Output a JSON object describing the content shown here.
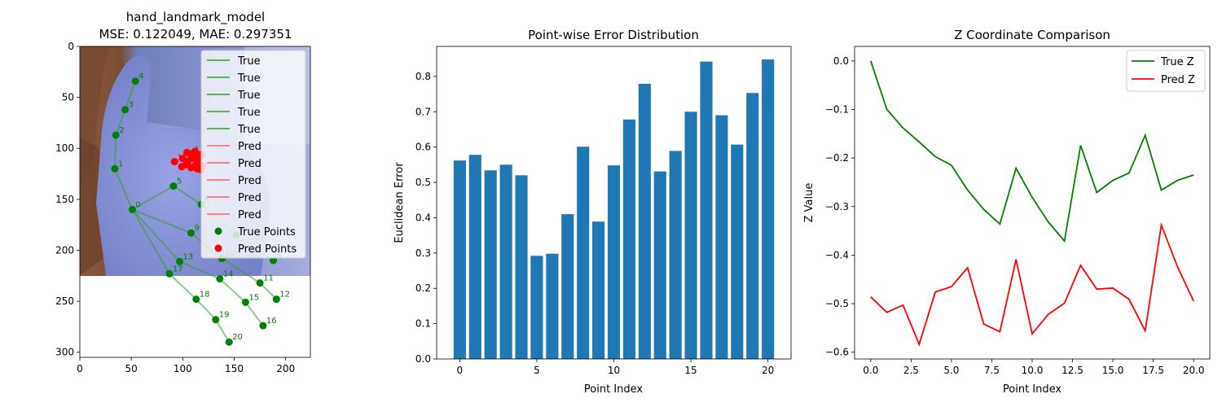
{
  "chart_data": [
    {
      "type": "scatter",
      "title": "hand_landmark_model\nMSE: 0.122049, MAE: 0.297351",
      "xlabel": "",
      "ylabel": "",
      "xlim": [
        0,
        224
      ],
      "ylim": [
        305,
        0
      ],
      "xticks": [
        "0",
        "50",
        "100",
        "150",
        "200"
      ],
      "yticks": [
        "0",
        "50",
        "100",
        "150",
        "200",
        "250",
        "300"
      ],
      "background": "hand photo (bluish glove, brown background) covering y 0–222",
      "legend_position": "upper right",
      "legend": [
        {
          "label": "True",
          "kind": "line",
          "color": "#2ca02c"
        },
        {
          "label": "True",
          "kind": "line",
          "color": "#2ca02c"
        },
        {
          "label": "True",
          "kind": "line",
          "color": "#2ca02c"
        },
        {
          "label": "True",
          "kind": "line",
          "color": "#2ca02c"
        },
        {
          "label": "True",
          "kind": "line",
          "color": "#2ca02c"
        },
        {
          "label": "Pred",
          "kind": "line",
          "color": "#ff6060"
        },
        {
          "label": "Pred",
          "kind": "line",
          "color": "#ff6060"
        },
        {
          "label": "Pred",
          "kind": "line",
          "color": "#ff6060"
        },
        {
          "label": "Pred",
          "kind": "line",
          "color": "#ff6060"
        },
        {
          "label": "Pred",
          "kind": "line",
          "color": "#ff6060"
        },
        {
          "label": "True Points",
          "kind": "dot",
          "color": "#008000"
        },
        {
          "label": "Pred Points",
          "kind": "dot",
          "color": "#ff0000"
        }
      ],
      "true_points": {
        "color": "#008000",
        "x": [
          51,
          34,
          35,
          44,
          54,
          91,
          118,
          152,
          188,
          108,
          138,
          175,
          191,
          97,
          136,
          161,
          178,
          87,
          113,
          132,
          145
        ],
        "y": [
          160,
          120,
          87,
          62,
          34,
          137,
          155,
          185,
          210,
          183,
          208,
          232,
          248,
          211,
          228,
          251,
          274,
          223,
          248,
          268,
          290
        ],
        "labels": [
          "0",
          "1",
          "2",
          "3",
          "4",
          "5",
          "6",
          "7",
          "8",
          "9",
          "10",
          "11",
          "12",
          "13",
          "14",
          "15",
          "16",
          "17",
          "18",
          "19",
          "20"
        ]
      },
      "connections": [
        [
          0,
          1
        ],
        [
          1,
          2
        ],
        [
          2,
          3
        ],
        [
          3,
          4
        ],
        [
          0,
          5
        ],
        [
          5,
          6
        ],
        [
          6,
          7
        ],
        [
          7,
          8
        ],
        [
          0,
          9
        ],
        [
          9,
          10
        ],
        [
          10,
          11
        ],
        [
          11,
          12
        ],
        [
          0,
          13
        ],
        [
          13,
          14
        ],
        [
          14,
          15
        ],
        [
          15,
          16
        ],
        [
          0,
          17
        ],
        [
          17,
          18
        ],
        [
          18,
          19
        ],
        [
          19,
          20
        ]
      ],
      "pred_points": {
        "color": "#ff0000",
        "x": [
          112,
          112,
          111,
          114,
          115,
          104,
          108,
          113,
          118,
          100,
          105,
          112,
          118,
          92,
          99,
          108,
          116,
          109,
          103,
          114,
          120
        ],
        "y": [
          103,
          107,
          110,
          106,
          112,
          104,
          110,
          108,
          106,
          110,
          113,
          117,
          121,
          113,
          118,
          119,
          116,
          105,
          116,
          120,
          117
        ],
        "labels": [
          "",
          "",
          "",
          "",
          "",
          "",
          "",
          "",
          "",
          "",
          "",
          "",
          "",
          "11",
          "",
          "",
          "",
          "17",
          "",
          "",
          ""
        ]
      }
    },
    {
      "type": "bar",
      "title": "Point-wise Error Distribution",
      "xlabel": "Point Index",
      "ylabel": "Euclidean Error",
      "xlim": [
        -1.5,
        21.5
      ],
      "ylim": [
        0,
        0.885
      ],
      "xticks": [
        "0",
        "5",
        "10",
        "15",
        "20"
      ],
      "yticks": [
        "0.0",
        "0.1",
        "0.2",
        "0.3",
        "0.4",
        "0.5",
        "0.6",
        "0.7",
        "0.8"
      ],
      "color": "#1f77b4",
      "categories": [
        0,
        1,
        2,
        3,
        4,
        5,
        6,
        7,
        8,
        9,
        10,
        11,
        12,
        13,
        14,
        15,
        16,
        17,
        18,
        19,
        20
      ],
      "values": [
        0.562,
        0.578,
        0.534,
        0.55,
        0.52,
        0.292,
        0.298,
        0.41,
        0.601,
        0.389,
        0.548,
        0.678,
        0.779,
        0.531,
        0.589,
        0.7,
        0.842,
        0.69,
        0.607,
        0.753,
        0.848
      ]
    },
    {
      "type": "line",
      "title": "Z Coordinate Comparison",
      "xlabel": "Point Index",
      "ylabel": "Z Value",
      "xlim": [
        -1,
        21
      ],
      "ylim": [
        -0.614,
        0.03
      ],
      "xticks": [
        "0.0",
        "2.5",
        "5.0",
        "7.5",
        "10.0",
        "12.5",
        "15.0",
        "17.5",
        "20.0"
      ],
      "yticks": [
        "0.0",
        "−0.1",
        "−0.2",
        "−0.3",
        "−0.4",
        "−0.5",
        "−0.6"
      ],
      "legend_position": "upper right",
      "x": [
        0,
        1,
        2,
        3,
        4,
        5,
        6,
        7,
        8,
        9,
        10,
        11,
        12,
        13,
        14,
        15,
        16,
        17,
        18,
        19,
        20
      ],
      "series": [
        {
          "name": "True Z",
          "color": "#008000",
          "values": [
            0.0,
            -0.1,
            -0.138,
            -0.167,
            -0.197,
            -0.215,
            -0.266,
            -0.306,
            -0.336,
            -0.221,
            -0.281,
            -0.332,
            -0.371,
            -0.174,
            -0.271,
            -0.246,
            -0.231,
            -0.153,
            -0.266,
            -0.246,
            -0.235
          ]
        },
        {
          "name": "Pred Z",
          "color": "#ff0000",
          "values": [
            -0.486,
            -0.518,
            -0.503,
            -0.584,
            -0.476,
            -0.465,
            -0.426,
            -0.542,
            -0.558,
            -0.409,
            -0.562,
            -0.522,
            -0.499,
            -0.421,
            -0.47,
            -0.468,
            -0.491,
            -0.556,
            -0.338,
            -0.424,
            -0.495
          ]
        }
      ]
    }
  ]
}
